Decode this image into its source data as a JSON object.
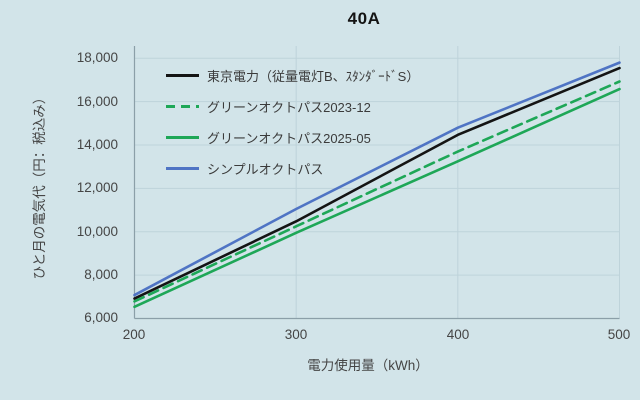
{
  "colors": {
    "background": "#d2e4e9",
    "gridline": "#bed3da",
    "axis": "#8b9fa8",
    "text": "#454545",
    "tepco_black": "#141414",
    "octopus_green": "#1ea757",
    "octopus_blue": "#4f74c4"
  },
  "axes": {
    "y_tick_labels": [
      "18,000",
      "16,000",
      "14,000",
      "12,000",
      "10,000",
      "8,000",
      "6,000"
    ],
    "x_tick_labels": [
      "200",
      "300",
      "400",
      "500"
    ]
  },
  "chart_data": {
    "type": "line",
    "title": "40A",
    "xlabel": "電力使用量（kWh）",
    "ylabel": "ひと月の電気代（円：税込み）",
    "x": [
      200,
      300,
      400,
      500
    ],
    "xlim": [
      200,
      500
    ],
    "ylim": [
      6000,
      18600
    ],
    "y_ticks": [
      6000,
      8000,
      10000,
      12000,
      14000,
      16000,
      18000
    ],
    "grid": true,
    "legend_position": "upper-left-inside",
    "series": [
      {
        "name": "東京電力（従量電灯B、ｽﾀﾝﾀﾞｰﾄﾞS）",
        "color": "#141414",
        "style": "solid",
        "values": [
          6920,
          10480,
          14470,
          17550
        ]
      },
      {
        "name": "グリーンオクトパス2023-12",
        "color": "#1ea757",
        "style": "dashed",
        "values": [
          6790,
          10250,
          13700,
          16930
        ]
      },
      {
        "name": "グリーンオクトパス2025-05",
        "color": "#1ea757",
        "style": "solid",
        "values": [
          6540,
          9950,
          13250,
          16580
        ]
      },
      {
        "name": "シンプルオクトパス",
        "color": "#4f74c4",
        "style": "solid",
        "values": [
          7080,
          11050,
          14800,
          17800
        ]
      }
    ]
  }
}
